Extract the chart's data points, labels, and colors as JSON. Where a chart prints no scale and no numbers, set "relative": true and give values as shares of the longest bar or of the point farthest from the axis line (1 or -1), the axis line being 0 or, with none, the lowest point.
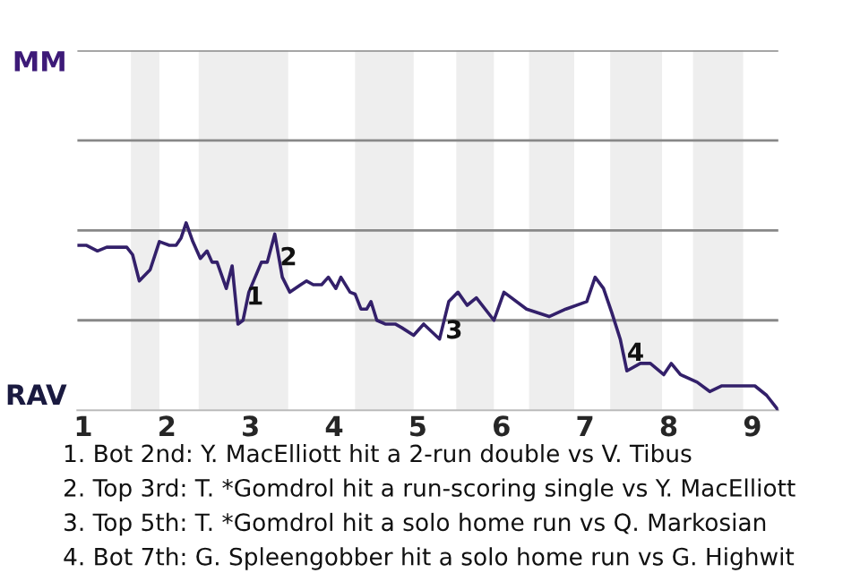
{
  "chart_data": {
    "type": "line",
    "relative": true,
    "x": [
      0.93,
      1.04,
      1.17,
      1.28,
      1.52,
      1.59,
      1.67,
      1.8,
      1.91,
      2.03,
      2.11,
      2.17,
      2.23,
      2.31,
      2.4,
      2.48,
      2.54,
      2.6,
      2.71,
      2.78,
      2.85,
      2.91,
      2.98,
      3.13,
      3.2,
      3.29,
      3.38,
      3.47,
      3.6,
      3.67,
      3.75,
      3.85,
      3.93,
      4.02,
      4.08,
      4.19,
      4.25,
      4.32,
      4.39,
      4.44,
      4.51,
      4.61,
      4.73,
      4.81,
      4.95,
      5.07,
      5.26,
      5.37,
      5.48,
      5.59,
      5.7,
      5.91,
      6.03,
      6.3,
      6.57,
      6.77,
      7.02,
      7.12,
      7.22,
      7.32,
      7.42,
      7.5,
      7.66,
      7.78,
      7.94,
      8.03,
      8.14,
      8.34,
      8.49,
      8.63,
      9.03,
      9.17,
      9.31
    ],
    "series": [
      {
        "color": "#33206a",
        "values": [
          0.88,
          0.88,
          0.85,
          0.87,
          0.87,
          0.83,
          0.69,
          0.75,
          0.9,
          0.88,
          0.88,
          0.92,
          1.0,
          0.9,
          0.81,
          0.85,
          0.79,
          0.79,
          0.65,
          0.77,
          0.46,
          0.48,
          0.63,
          0.79,
          0.79,
          0.94,
          0.71,
          0.63,
          0.67,
          0.69,
          0.67,
          0.67,
          0.71,
          0.65,
          0.71,
          0.63,
          0.62,
          0.54,
          0.54,
          0.58,
          0.48,
          0.46,
          0.46,
          0.44,
          0.4,
          0.46,
          0.38,
          0.58,
          0.63,
          0.56,
          0.6,
          0.48,
          0.63,
          0.54,
          0.5,
          0.54,
          0.58,
          0.71,
          0.65,
          0.52,
          0.38,
          0.21,
          0.25,
          0.25,
          0.19,
          0.25,
          0.19,
          0.15,
          0.1,
          0.13,
          0.13,
          0.08,
          0.0
        ]
      }
    ],
    "xlim": [
      0.93,
      9.31
    ],
    "xticks": [
      1,
      2,
      3,
      4,
      5,
      6,
      7,
      8,
      9
    ],
    "ref_lines": [
      {
        "axis": "y",
        "value": 0.48,
        "color": "#888888"
      },
      {
        "axis": "y",
        "value": 0.96,
        "color": "#888888"
      },
      {
        "axis": "y",
        "value": 1.44,
        "color": "#888888"
      },
      {
        "axis": "y",
        "value": 1.92,
        "color": "#888888"
      }
    ],
    "bands": [
      {
        "axis": "x",
        "from": 1.57,
        "to": 1.91,
        "color": "#eeeeee"
      },
      {
        "axis": "x",
        "from": 2.38,
        "to": 3.45,
        "color": "#eeeeee"
      },
      {
        "axis": "x",
        "from": 4.25,
        "to": 4.95,
        "color": "#eeeeee"
      },
      {
        "axis": "x",
        "from": 5.46,
        "to": 5.91,
        "color": "#eeeeee"
      },
      {
        "axis": "x",
        "from": 6.33,
        "to": 6.87,
        "color": "#eeeeee"
      },
      {
        "axis": "x",
        "from": 7.3,
        "to": 7.92,
        "color": "#eeeeee"
      },
      {
        "axis": "x",
        "from": 8.29,
        "to": 8.89,
        "color": "#eeeeee"
      }
    ],
    "annotations": [
      {
        "text": "1",
        "x": 2.95,
        "y": 0.6
      },
      {
        "text": "2",
        "x": 3.35,
        "y": 0.81
      },
      {
        "text": "3",
        "x": 5.33,
        "y": 0.42
      },
      {
        "text": "4",
        "x": 7.5,
        "y": 0.3
      },
      "MM",
      "RAV",
      "1. Bot 2nd: Y. MacElliott hit a 2-run double vs V. Tibus",
      "2. Top 3rd: T. *Gomdrol hit a run-scoring single vs Y. MacElliott",
      "3. Top 5th: T. *Gomdrol hit a solo home run vs Q. Markosian",
      "4. Bot 7th: G. Spleengobber hit a solo home run vs G. Highwit"
    ]
  }
}
